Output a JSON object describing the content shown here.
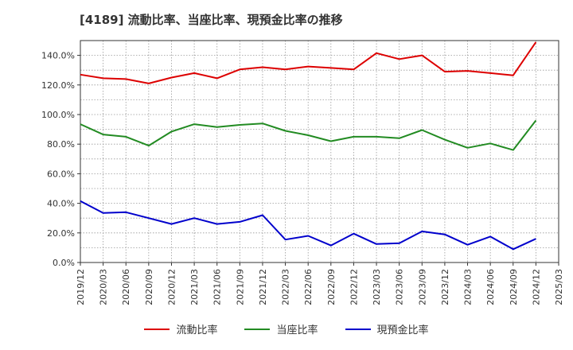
{
  "chart_data": {
    "type": "line",
    "title": "[4189]  流動比率、当座比率、現預金比率の推移",
    "xlabel": "",
    "ylabel": "",
    "ylim": [
      0,
      150
    ],
    "yticks": [
      0,
      20,
      40,
      60,
      80,
      100,
      120,
      140
    ],
    "ytick_labels": [
      "0.0%",
      "20.0%",
      "40.0%",
      "60.0%",
      "80.0%",
      "100.0%",
      "120.0%",
      "140.0%"
    ],
    "grid": true,
    "legend_position": "bottom",
    "categories": [
      "2019/12",
      "2020/03",
      "2020/06",
      "2020/09",
      "2020/12",
      "2021/03",
      "2021/06",
      "2021/09",
      "2021/12",
      "2022/03",
      "2022/06",
      "2022/09",
      "2022/12",
      "2023/03",
      "2023/06",
      "2023/09",
      "2023/12",
      "2024/03",
      "2024/06",
      "2024/09",
      "2024/12",
      "2025/03"
    ],
    "series": [
      {
        "name": "流動比率",
        "color": "#dd0000",
        "values": [
          127.0,
          124.5,
          124.0,
          121.0,
          125.0,
          128.0,
          124.5,
          130.5,
          132.0,
          130.5,
          132.5,
          131.5,
          130.5,
          141.5,
          137.5,
          140.0,
          129.0,
          129.5,
          128.0,
          126.5,
          149.0,
          null
        ]
      },
      {
        "name": "当座比率",
        "color": "#228b22",
        "values": [
          93.5,
          86.5,
          85.0,
          79.0,
          88.5,
          93.5,
          91.5,
          93.0,
          94.0,
          89.0,
          86.0,
          82.0,
          85.0,
          85.0,
          84.0,
          89.5,
          83.0,
          77.5,
          80.5,
          76.0,
          96.0,
          null
        ]
      },
      {
        "name": "現預金比率",
        "color": "#0000cc",
        "values": [
          41.5,
          33.5,
          34.0,
          30.0,
          26.0,
          30.0,
          26.0,
          27.5,
          32.0,
          15.5,
          18.0,
          11.5,
          19.5,
          12.5,
          13.0,
          21.0,
          19.0,
          12.0,
          17.5,
          9.0,
          16.0,
          null
        ]
      }
    ]
  }
}
